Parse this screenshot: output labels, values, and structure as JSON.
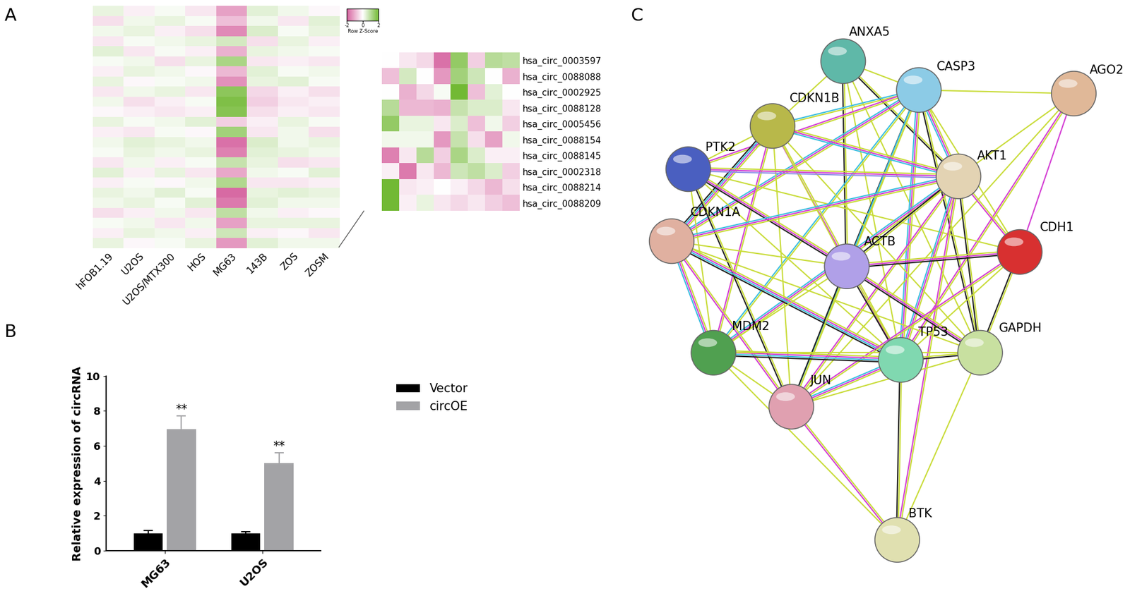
{
  "chart_data": [
    {
      "type": "heatmap",
      "label": "A",
      "categories": [
        "hFOB1.19",
        "U2OS",
        "U2OS/MTX300",
        "HOS",
        "MG63",
        "143B",
        "ZOS",
        "ZOSM"
      ],
      "cells": [
        [
          0.3,
          -0.2,
          0.1,
          -0.3,
          -1.2,
          0.4,
          0.2,
          -0.1
        ],
        [
          -0.4,
          0.2,
          0.3,
          0.1,
          -0.8,
          0.2,
          -0.3,
          0.4
        ],
        [
          0.2,
          0.3,
          -0.2,
          -0.4,
          -1.5,
          0.5,
          0.1,
          0.3
        ],
        [
          -0.3,
          0.1,
          0.2,
          0.3,
          0.6,
          -0.4,
          0.3,
          -0.2
        ],
        [
          0.4,
          -0.3,
          0.1,
          -0.2,
          -1.0,
          0.3,
          0.2,
          0.1
        ],
        [
          0.1,
          0.2,
          -0.4,
          0.3,
          1.2,
          -0.3,
          -0.2,
          -0.3
        ],
        [
          -0.2,
          0.3,
          0.2,
          -0.1,
          -0.9,
          0.4,
          0.1,
          0.2
        ],
        [
          0.3,
          -0.1,
          0.1,
          0.2,
          -1.4,
          0.3,
          0.4,
          0.1
        ],
        [
          -0.3,
          0.2,
          0.3,
          -0.3,
          1.6,
          -0.5,
          -0.2,
          -0.4
        ],
        [
          0.2,
          -0.4,
          -0.2,
          0.1,
          1.8,
          -0.6,
          -0.3,
          -0.2
        ],
        [
          -0.1,
          -0.2,
          -0.3,
          -0.2,
          1.7,
          -0.4,
          -0.2,
          -0.3
        ],
        [
          0.3,
          0.1,
          0.2,
          0.4,
          -0.6,
          -0.2,
          0.3,
          0.1
        ],
        [
          -0.2,
          -0.3,
          0.1,
          -0.1,
          1.3,
          -0.3,
          0.2,
          -0.4
        ],
        [
          0.2,
          0.4,
          0.3,
          0.2,
          -1.8,
          0.5,
          0.2,
          0.3
        ],
        [
          0.1,
          0.3,
          0.2,
          0.3,
          -1.6,
          0.4,
          0.3,
          0.2
        ],
        [
          -0.3,
          0.2,
          -0.2,
          0.1,
          0.8,
          0.3,
          -0.4,
          -0.3
        ],
        [
          0.4,
          -0.2,
          0.3,
          -0.3,
          -1.1,
          0.2,
          0.1,
          0.4
        ],
        [
          -0.2,
          0.1,
          -0.1,
          0.2,
          1.1,
          -0.3,
          -0.3,
          -0.2
        ],
        [
          0.3,
          0.2,
          0.4,
          0.1,
          -1.9,
          0.3,
          0.4,
          0.3
        ],
        [
          0.2,
          0.3,
          0.1,
          0.4,
          -1.7,
          0.4,
          0.2,
          0.2
        ],
        [
          -0.4,
          -0.2,
          0.2,
          -0.3,
          0.9,
          0.2,
          -0.2,
          -0.1
        ],
        [
          0.1,
          0.2,
          -0.3,
          0.2,
          -1.2,
          0.3,
          0.3,
          0.3
        ],
        [
          -0.2,
          0.3,
          0.2,
          -0.2,
          0.7,
          -0.2,
          -0.1,
          -0.3
        ],
        [
          0.3,
          -0.1,
          0.1,
          0.3,
          -1.3,
          0.4,
          0.2,
          0.2
        ]
      ],
      "colorbar": {
        "label": "Row Z-Score",
        "range": [
          -2,
          2
        ],
        "ticks": [
          -2,
          0,
          2
        ],
        "colors": [
          "#d6639f",
          "#ffffff",
          "#72b934"
        ]
      },
      "inset": {
        "row_labels": [
          "hsa_circ_0003597",
          "hsa_circ_0088088",
          "hsa_circ_0002925",
          "hsa_circ_0088128",
          "hsa_circ_0005456",
          "hsa_circ_0088154",
          "hsa_circ_0088145",
          "hsa_circ_0002318",
          "hsa_circ_0088214",
          "hsa_circ_0088209"
        ],
        "cells": [
          [
            0,
            -0.3,
            -0.5,
            -1.8,
            1.5,
            -0.6,
            1.0,
            0.9
          ],
          [
            -0.8,
            0.6,
            0,
            -1.3,
            1.3,
            0.7,
            0,
            -1.0
          ],
          [
            0,
            -1.0,
            -0.5,
            0.1,
            2.0,
            -0.8,
            0.4,
            0
          ],
          [
            1.0,
            -0.9,
            -0.9,
            -1.0,
            0.8,
            0.5,
            0.5,
            -0.3
          ],
          [
            1.5,
            0.3,
            0.3,
            -0.3,
            0.5,
            -0.8,
            0.2,
            -0.6
          ],
          [
            0.2,
            0.2,
            0.2,
            -1.3,
            0.8,
            -0.4,
            -1.2,
            0.2
          ],
          [
            -1.6,
            -0.3,
            1.0,
            -0.6,
            1.2,
            0.5,
            -0.2,
            -0.2
          ],
          [
            -0.2,
            -1.7,
            -0.3,
            -0.9,
            0.7,
            0.9,
            0.5,
            -0.6
          ],
          [
            2.0,
            -0.3,
            -0.2,
            0,
            -0.2,
            -0.5,
            -0.9,
            -0.4
          ],
          [
            2.0,
            -0.2,
            0.3,
            -0.3,
            -0.5,
            -0.3,
            -0.6,
            -0.8
          ]
        ]
      }
    },
    {
      "type": "bar",
      "label": "B",
      "categories": [
        "MG63",
        "U2OS"
      ],
      "series": [
        {
          "name": "Vector",
          "color": "#000000",
          "values": [
            1.0,
            1.0
          ],
          "errors": [
            0.15,
            0.1
          ]
        },
        {
          "name": "circOE",
          "color": "#a3a3a6",
          "values": [
            6.95,
            5.0
          ],
          "errors": [
            0.75,
            0.6
          ],
          "annotations": [
            "**",
            "**"
          ]
        }
      ],
      "ylabel": "Relative expression of circRNA",
      "ylim": [
        0,
        10
      ],
      "yticks": [
        0,
        2,
        4,
        6,
        8,
        10
      ],
      "legend": "upper left"
    }
  ],
  "network": {
    "label": "C",
    "nodes": [
      {
        "name": "ANXA5",
        "color": "#5fb8a8"
      },
      {
        "name": "CASP3",
        "color": "#8ccbe6"
      },
      {
        "name": "AGO2",
        "color": "#e0b898"
      },
      {
        "name": "CDKN1B",
        "color": "#b8b84a"
      },
      {
        "name": "PTK2",
        "color": "#4a5fc0"
      },
      {
        "name": "AKT1",
        "color": "#e3d3b3"
      },
      {
        "name": "CDKN1A",
        "color": "#e0b0a0"
      },
      {
        "name": "ACTB",
        "color": "#b0a0e8"
      },
      {
        "name": "CDH1",
        "color": "#d83030"
      },
      {
        "name": "MDM2",
        "color": "#50a050"
      },
      {
        "name": "TP53",
        "color": "#80d8b0"
      },
      {
        "name": "GAPDH",
        "color": "#c8e0a0"
      },
      {
        "name": "JUN",
        "color": "#e0a0b0"
      },
      {
        "name": "BTK",
        "color": "#e0e0b0"
      }
    ],
    "edges": [
      {
        "source": "ANXA5",
        "target": "CASP3",
        "colors": [
          "#c9dc3a"
        ]
      },
      {
        "source": "ANXA5",
        "target": "AKT1",
        "colors": [
          "#c9dc3a",
          "#222222"
        ]
      },
      {
        "source": "ANXA5",
        "target": "TP53",
        "colors": [
          "#c9dc3a"
        ]
      },
      {
        "source": "ANXA5",
        "target": "ACTB",
        "colors": [
          "#c9dc3a",
          "#222222"
        ]
      },
      {
        "source": "ANXA5",
        "target": "GAPDH",
        "colors": [
          "#c9dc3a"
        ]
      },
      {
        "source": "ANXA5",
        "target": "CDKN1B",
        "colors": [
          "#c9dc3a"
        ]
      },
      {
        "source": "CASP3",
        "target": "AGO2",
        "colors": [
          "#c9dc3a"
        ]
      },
      {
        "source": "CASP3",
        "target": "AKT1",
        "colors": [
          "#c9dc3a",
          "#d43fd4",
          "#3cbfe0"
        ]
      },
      {
        "source": "CASP3",
        "target": "CDKN1B",
        "colors": [
          "#c9dc3a",
          "#3cbfe0"
        ]
      },
      {
        "source": "CASP3",
        "target": "PTK2",
        "colors": [
          "#c9dc3a",
          "#d43fd4"
        ]
      },
      {
        "source": "CASP3",
        "target": "TP53",
        "colors": [
          "#c9dc3a",
          "#d43fd4",
          "#3cbfe0"
        ]
      },
      {
        "source": "CASP3",
        "target": "MDM2",
        "colors": [
          "#c9dc3a",
          "#3cbfe0"
        ]
      },
      {
        "source": "CASP3",
        "target": "ACTB",
        "colors": [
          "#c9dc3a",
          "#222222"
        ]
      },
      {
        "source": "CASP3",
        "target": "CDH1",
        "colors": [
          "#c9dc3a"
        ]
      },
      {
        "source": "CASP3",
        "target": "GAPDH",
        "colors": [
          "#c9dc3a",
          "#222222"
        ]
      },
      {
        "source": "CASP3",
        "target": "JUN",
        "colors": [
          "#c9dc3a",
          "#3cbfe0"
        ]
      },
      {
        "source": "CASP3",
        "target": "CDKN1A",
        "colors": [
          "#c9dc3a",
          "#d43fd4",
          "#3cbfe0"
        ]
      },
      {
        "source": "AGO2",
        "target": "AKT1",
        "colors": [
          "#c9dc3a"
        ]
      },
      {
        "source": "AGO2",
        "target": "CDH1",
        "colors": [
          "#d43fd4"
        ]
      },
      {
        "source": "AGO2",
        "target": "TP53",
        "colors": [
          "#c9dc3a",
          "#d43fd4"
        ]
      },
      {
        "source": "AGO2",
        "target": "JUN",
        "colors": [
          "#c9dc3a"
        ]
      },
      {
        "source": "CDKN1B",
        "target": "AKT1",
        "colors": [
          "#c9dc3a",
          "#d43fd4",
          "#3cbfe0"
        ]
      },
      {
        "source": "CDKN1B",
        "target": "PTK2",
        "colors": [
          "#c9dc3a"
        ]
      },
      {
        "source": "CDKN1B",
        "target": "CDKN1A",
        "colors": [
          "#c9dc3a",
          "#d43fd4",
          "#3cbfe0",
          "#222222"
        ]
      },
      {
        "source": "CDKN1B",
        "target": "TP53",
        "colors": [
          "#c9dc3a",
          "#d43fd4"
        ]
      },
      {
        "source": "CDKN1B",
        "target": "MDM2",
        "colors": [
          "#c9dc3a",
          "#d43fd4"
        ]
      },
      {
        "source": "CDKN1B",
        "target": "JUN",
        "colors": [
          "#c9dc3a"
        ]
      },
      {
        "source": "CDKN1B",
        "target": "ACTB",
        "colors": [
          "#c9dc3a"
        ]
      },
      {
        "source": "CDKN1B",
        "target": "GAPDH",
        "colors": [
          "#c9dc3a"
        ]
      },
      {
        "source": "PTK2",
        "target": "AKT1",
        "colors": [
          "#c9dc3a",
          "#d43fd4",
          "#8f8fe6"
        ]
      },
      {
        "source": "PTK2",
        "target": "ACTB",
        "colors": [
          "#c9dc3a",
          "#d43fd4",
          "#222222"
        ]
      },
      {
        "source": "PTK2",
        "target": "TP53",
        "colors": [
          "#c9dc3a"
        ]
      },
      {
        "source": "PTK2",
        "target": "CDH1",
        "colors": [
          "#c9dc3a"
        ]
      },
      {
        "source": "PTK2",
        "target": "JUN",
        "colors": [
          "#c9dc3a",
          "#222222"
        ]
      },
      {
        "source": "PTK2",
        "target": "MDM2",
        "colors": [
          "#c9dc3a"
        ]
      },
      {
        "source": "AKT1",
        "target": "CDH1",
        "colors": [
          "#c9dc3a",
          "#d43fd4"
        ]
      },
      {
        "source": "AKT1",
        "target": "MDM2",
        "colors": [
          "#c9dc3a",
          "#d43fd4",
          "#3cbfe0"
        ]
      },
      {
        "source": "AKT1",
        "target": "TP53",
        "colors": [
          "#c9dc3a",
          "#d43fd4",
          "#3cbfe0"
        ]
      },
      {
        "source": "AKT1",
        "target": "JUN",
        "colors": [
          "#c9dc3a",
          "#d43fd4"
        ]
      },
      {
        "source": "AKT1",
        "target": "GAPDH",
        "colors": [
          "#c9dc3a",
          "#222222"
        ]
      },
      {
        "source": "AKT1",
        "target": "CDKN1A",
        "colors": [
          "#c9dc3a",
          "#d43fd4",
          "#3cbfe0"
        ]
      },
      {
        "source": "AKT1",
        "target": "ACTB",
        "colors": [
          "#c9dc3a",
          "#222222"
        ]
      },
      {
        "source": "AKT1",
        "target": "BTK",
        "colors": [
          "#c9dc3a",
          "#d43fd4"
        ]
      },
      {
        "source": "CDKN1A",
        "target": "MDM2",
        "colors": [
          "#c9dc3a",
          "#d43fd4",
          "#3cbfe0"
        ]
      },
      {
        "source": "CDKN1A",
        "target": "TP53",
        "colors": [
          "#c9dc3a",
          "#d43fd4",
          "#3cbfe0",
          "#222222"
        ]
      },
      {
        "source": "CDKN1A",
        "target": "JUN",
        "colors": [
          "#c9dc3a",
          "#d43fd4"
        ]
      },
      {
        "source": "CDKN1A",
        "target": "ACTB",
        "colors": [
          "#c9dc3a"
        ]
      },
      {
        "source": "CDKN1A",
        "target": "GAPDH",
        "colors": [
          "#c9dc3a"
        ]
      },
      {
        "source": "ACTB",
        "target": "CDH1",
        "colors": [
          "#c9dc3a",
          "#d43fd4",
          "#222222"
        ]
      },
      {
        "source": "ACTB",
        "target": "TP53",
        "colors": [
          "#c9dc3a",
          "#222222"
        ]
      },
      {
        "source": "ACTB",
        "target": "GAPDH",
        "colors": [
          "#c9dc3a",
          "#d43fd4",
          "#222222"
        ]
      },
      {
        "source": "ACTB",
        "target": "JUN",
        "colors": [
          "#c9dc3a",
          "#222222"
        ]
      },
      {
        "source": "ACTB",
        "target": "MDM2",
        "colors": [
          "#c9dc3a"
        ]
      },
      {
        "source": "CDH1",
        "target": "TP53",
        "colors": [
          "#c9dc3a"
        ]
      },
      {
        "source": "CDH1",
        "target": "GAPDH",
        "colors": [
          "#c9dc3a",
          "#222222"
        ]
      },
      {
        "source": "CDH1",
        "target": "JUN",
        "colors": [
          "#c9dc3a",
          "#d43fd4"
        ]
      },
      {
        "source": "MDM2",
        "target": "TP53",
        "colors": [
          "#c9dc3a",
          "#d43fd4",
          "#3cbfe0",
          "#222222"
        ]
      },
      {
        "source": "MDM2",
        "target": "JUN",
        "colors": [
          "#c9dc3a"
        ]
      },
      {
        "source": "MDM2",
        "target": "GAPDH",
        "colors": [
          "#c9dc3a"
        ]
      },
      {
        "source": "TP53",
        "target": "GAPDH",
        "colors": [
          "#c9dc3a",
          "#222222"
        ]
      },
      {
        "source": "TP53",
        "target": "JUN",
        "colors": [
          "#c9dc3a",
          "#d43fd4",
          "#3cbfe0"
        ]
      },
      {
        "source": "TP53",
        "target": "BTK",
        "colors": [
          "#c9dc3a",
          "#222222"
        ]
      },
      {
        "source": "GAPDH",
        "target": "JUN",
        "colors": [
          "#c9dc3a"
        ]
      },
      {
        "source": "GAPDH",
        "target": "BTK",
        "colors": [
          "#c9dc3a"
        ]
      },
      {
        "source": "JUN",
        "target": "BTK",
        "colors": [
          "#c9dc3a",
          "#d43fd4"
        ]
      },
      {
        "source": "MDM2",
        "target": "BTK",
        "colors": [
          "#c9dc3a"
        ]
      }
    ]
  }
}
